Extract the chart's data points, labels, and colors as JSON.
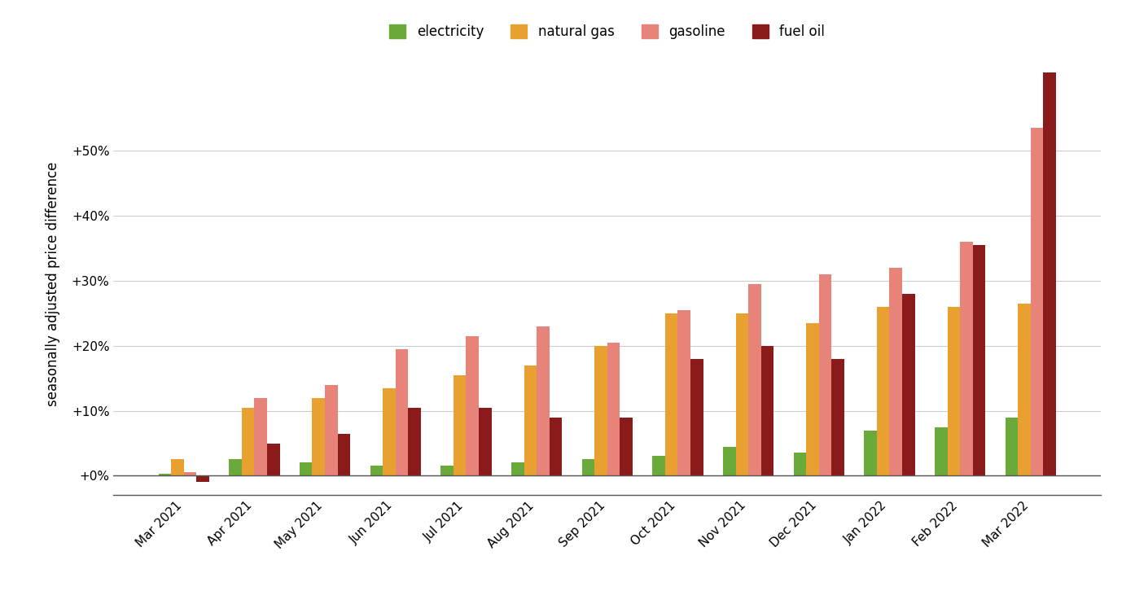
{
  "months": [
    "Mar 2021",
    "Apr 2021",
    "May 2021",
    "Jun 2021",
    "Jul 2021",
    "Aug 2021",
    "Sep 2021",
    "Oct 2021",
    "Nov 2021",
    "Dec 2021",
    "Jan 2022",
    "Feb 2022",
    "Mar 2022"
  ],
  "electricity": [
    0.3,
    2.5,
    2.0,
    1.5,
    1.5,
    2.0,
    2.5,
    3.0,
    4.5,
    3.5,
    7.0,
    7.5,
    9.0
  ],
  "natural_gas": [
    2.5,
    10.5,
    12.0,
    13.5,
    15.5,
    17.0,
    20.0,
    25.0,
    25.0,
    23.5,
    26.0,
    26.0,
    26.5
  ],
  "gasoline": [
    0.5,
    12.0,
    14.0,
    19.5,
    21.5,
    23.0,
    20.5,
    25.5,
    29.5,
    31.0,
    32.0,
    36.0,
    53.5
  ],
  "fuel_oil": [
    -1.0,
    5.0,
    6.5,
    10.5,
    10.5,
    9.0,
    9.0,
    18.0,
    20.0,
    18.0,
    28.0,
    35.5,
    62.0
  ],
  "electricity_color": "#6aaa3a",
  "natural_gas_color": "#e8a030",
  "gasoline_color": "#e8837a",
  "fuel_oil_color": "#8b1a1a",
  "background_color": "#ffffff",
  "grid_color": "#cccccc",
  "ylabel": "seasonally adjusted price difference",
  "yticks": [
    0,
    10,
    20,
    30,
    40,
    50
  ],
  "ytick_labels": [
    "+0%",
    "+10%",
    "+20%",
    "+30%",
    "+40%",
    "+50%"
  ],
  "ylim": [
    -3,
    62
  ],
  "legend_labels": [
    "electricity",
    "natural gas",
    "gasoline",
    "fuel oil"
  ],
  "bar_width": 0.18
}
